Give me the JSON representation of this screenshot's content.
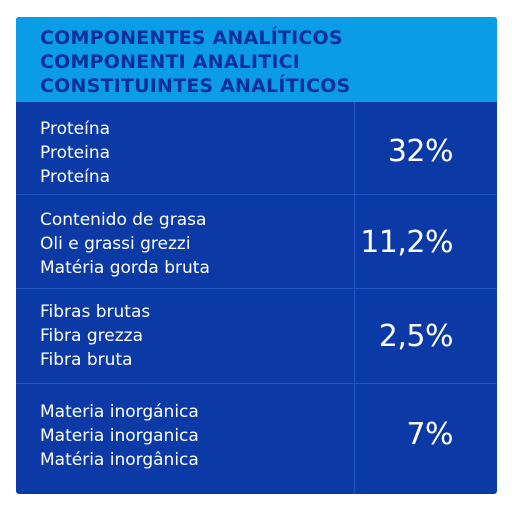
{
  "header": {
    "lines": [
      "COMPONENTES ANALÍTICOS",
      "COMPONENTI ANALITICI",
      "CONSTITUINTES ANALÍTICOS"
    ]
  },
  "rows": [
    {
      "labels": [
        "Proteína",
        "Proteina",
        "Proteína"
      ],
      "value": "32%"
    },
    {
      "labels": [
        "Contenido de grasa",
        "Oli e grassi grezzi",
        "Matéria gorda bruta"
      ],
      "value": "11,2%"
    },
    {
      "labels": [
        "Fibras brutas",
        "Fibra grezza",
        "Fibra bruta"
      ],
      "value": "2,5%"
    },
    {
      "labels": [
        "Materia inorgánica",
        "Materia inorganica",
        "Matéria inorgânica"
      ],
      "value": "7%"
    }
  ],
  "colors": {
    "header_bg": "#0a9ce6",
    "header_text": "#0b2f9a",
    "body_bg": "#0b3aa6",
    "divider": "#2455c4",
    "text": "#ffffff"
  }
}
